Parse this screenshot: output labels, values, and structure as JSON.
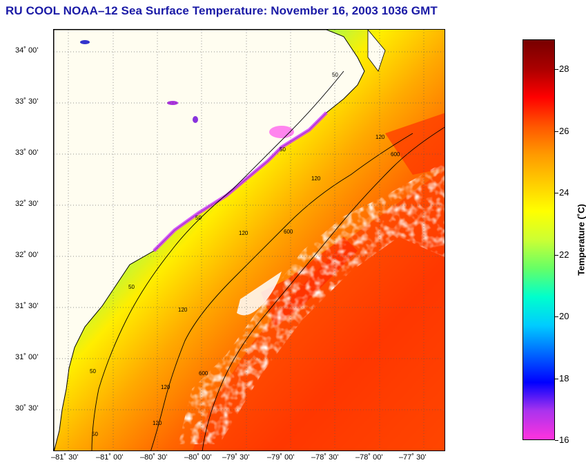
{
  "title": "RU COOL  NOAA–12  Sea Surface Temperature:  November 16, 2003 1036 GMT",
  "map": {
    "lat_labels": [
      "34˚ 00’",
      "33˚ 30’",
      "33˚ 00’",
      "32˚ 30’",
      "32˚ 00’",
      "31˚ 30’",
      "31˚ 00’",
      "30˚ 30’"
    ],
    "lon_labels": [
      "–81˚ 30’",
      "–81˚ 00’",
      "–80˚ 30’",
      "–80˚ 00’",
      "–79˚ 30’",
      "–79˚ 00’",
      "–78˚ 30’",
      "–78˚ 00’",
      "–77˚ 30’"
    ],
    "contour_labels": [
      "50",
      "50",
      "50",
      "50",
      "50",
      "50",
      "120",
      "120",
      "120",
      "120",
      "120",
      "120",
      "600",
      "600",
      "600"
    ],
    "colors": {
      "land": "#fffdf0",
      "coast": "#000000",
      "cloud": "#ffffff"
    }
  },
  "colorbar": {
    "title": "Temperature (˚C)",
    "min": 16,
    "max": 29,
    "ticks": [
      "28",
      "26",
      "24",
      "22",
      "20",
      "18",
      "16"
    ],
    "stops": [
      "#ff33dd",
      "#aa33ee",
      "#0000ff",
      "#0066ff",
      "#00ccff",
      "#00ffcc",
      "#66ff66",
      "#ccff33",
      "#ffff00",
      "#ffcc00",
      "#ff9900",
      "#ff5500",
      "#ff0000",
      "#aa0000",
      "#770000"
    ]
  }
}
